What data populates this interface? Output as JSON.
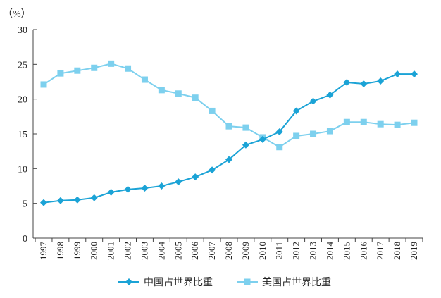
{
  "chart_data": {
    "type": "line",
    "unit_label": "（%）",
    "x": [
      "1997",
      "1998",
      "1999",
      "2000",
      "2001",
      "2002",
      "2003",
      "2004",
      "2005",
      "2006",
      "2007",
      "2008",
      "2009",
      "2010",
      "2011",
      "2012",
      "2013",
      "2014",
      "2015",
      "2016",
      "2017",
      "2018",
      "2019"
    ],
    "ylim": [
      0,
      30
    ],
    "yticks": [
      0,
      5,
      10,
      15,
      20,
      25,
      30
    ],
    "grid": false,
    "legend_position": "bottom",
    "series": [
      {
        "name": "中国占世界比重",
        "color": "#1BA3D6",
        "marker": "diamond",
        "values": [
          5.1,
          5.4,
          5.5,
          5.8,
          6.6,
          7.0,
          7.2,
          7.5,
          8.1,
          8.8,
          9.8,
          11.3,
          13.4,
          14.2,
          15.3,
          18.3,
          19.7,
          20.6,
          22.4,
          22.2,
          22.6,
          23.6,
          23.6
        ]
      },
      {
        "name": "美国占世界比重",
        "color": "#7DD0EE",
        "marker": "square",
        "values": [
          22.1,
          23.7,
          24.1,
          24.5,
          25.1,
          24.4,
          22.8,
          21.3,
          20.8,
          20.2,
          18.3,
          16.1,
          15.9,
          14.5,
          13.1,
          14.7,
          15.0,
          15.4,
          16.7,
          16.7,
          16.4,
          16.3,
          16.6
        ]
      }
    ]
  }
}
